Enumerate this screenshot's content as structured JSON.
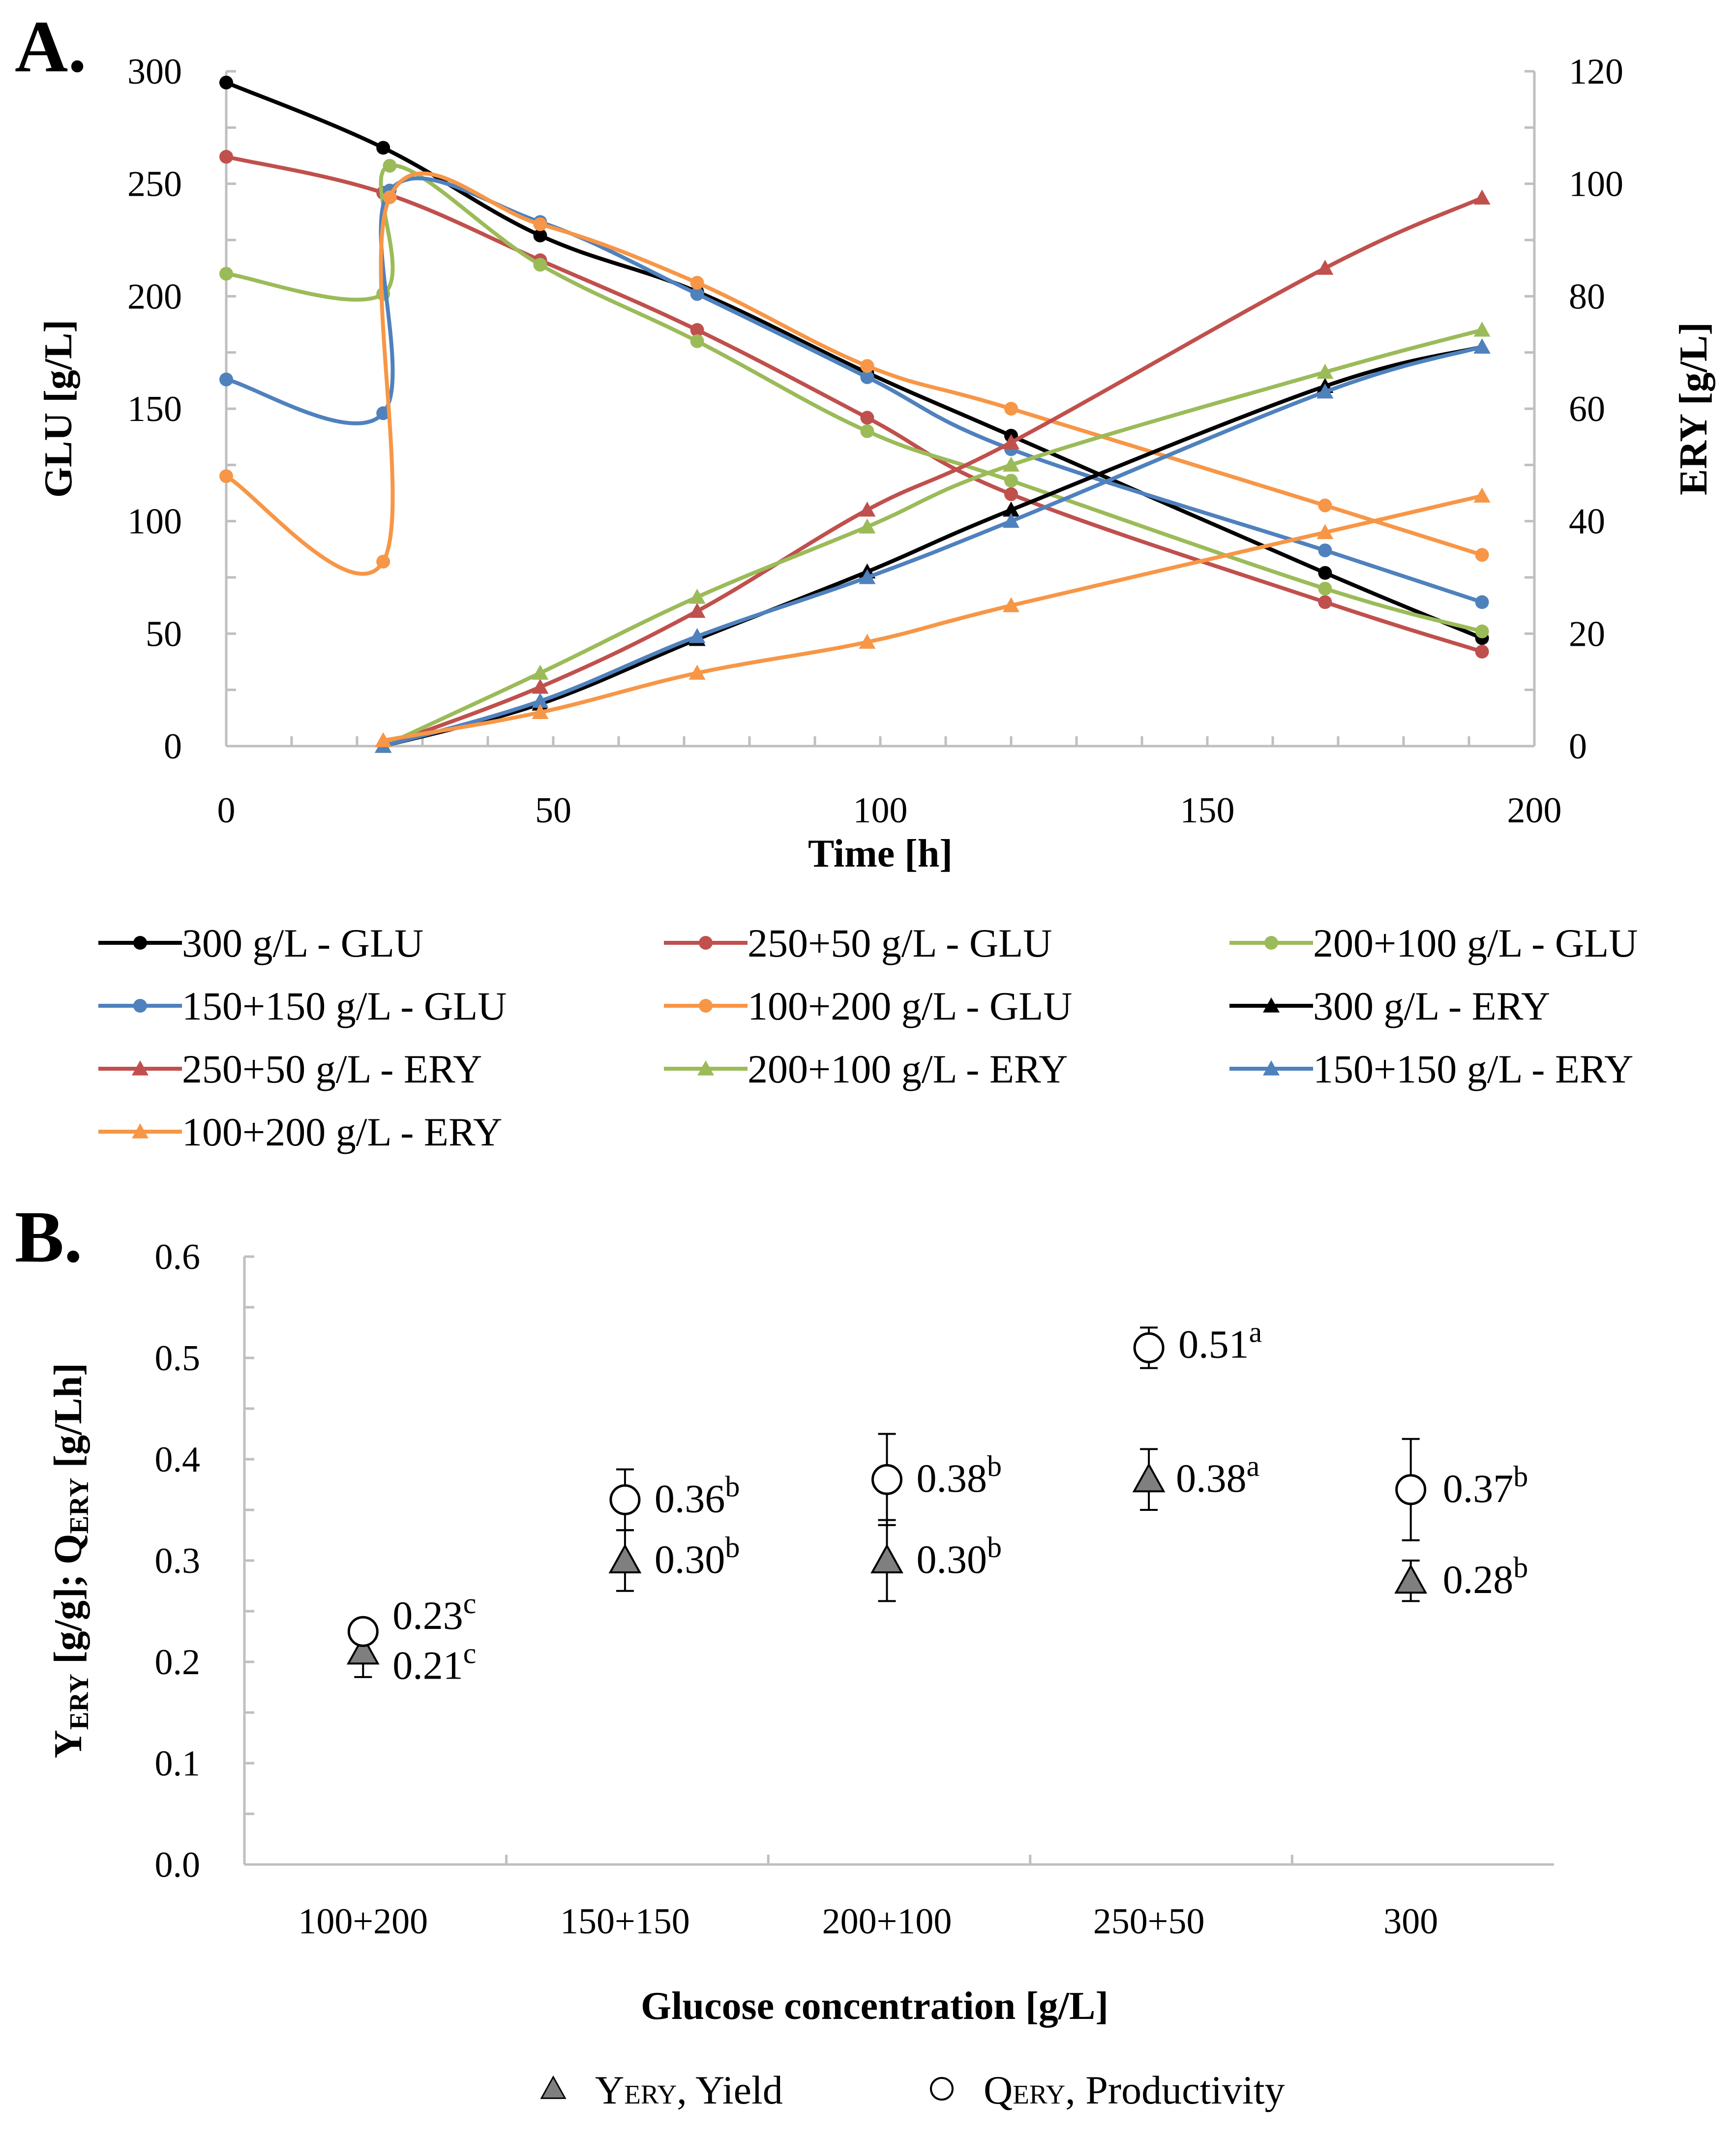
{
  "figure": {
    "panelA_label": "A.",
    "panelB_label": "B."
  },
  "chart_data": [
    {
      "type": "line",
      "title": "",
      "xlabel": "Time [h]",
      "ylabel": "GLU [g/L]",
      "y2label": "ERY [g/L]",
      "xlim": [
        0,
        200
      ],
      "ylim": [
        0,
        300
      ],
      "y2lim": [
        0,
        120
      ],
      "xticks": [
        0,
        50,
        100,
        150,
        200
      ],
      "yticks": [
        0,
        50,
        100,
        150,
        200,
        250,
        300
      ],
      "y2ticks": [
        0,
        20,
        40,
        60,
        80,
        100,
        120
      ],
      "colors": {
        "300": "#000000",
        "250+50": "#c0504d",
        "200+100": "#9bbb59",
        "150+150": "#4f81bd",
        "100+200": "#f79646"
      },
      "series": [
        {
          "name": "300 g/L - GLU",
          "axis": "left",
          "marker": "circle",
          "colorKey": "300",
          "points": [
            [
              0,
              295
            ],
            [
              24,
              266
            ],
            [
              48,
              227
            ],
            [
              72,
              202
            ],
            [
              98,
              166
            ],
            [
              120,
              138
            ],
            [
              168,
              77
            ],
            [
              192,
              48
            ]
          ]
        },
        {
          "name": "250+50 g/L - GLU",
          "axis": "left",
          "marker": "circle",
          "colorKey": "250+50",
          "points": [
            [
              0,
              262
            ],
            [
              24,
              246
            ],
            [
              48,
              216
            ],
            [
              72,
              185
            ],
            [
              98,
              146
            ],
            [
              120,
              112
            ],
            [
              168,
              64
            ],
            [
              192,
              42
            ]
          ]
        },
        {
          "name": "200+100 g/L - GLU",
          "axis": "left",
          "marker": "circle",
          "colorKey": "200+100",
          "points": [
            [
              0,
              210
            ],
            [
              24,
              201
            ],
            [
              25,
              258
            ],
            [
              48,
              214
            ],
            [
              72,
              180
            ],
            [
              98,
              140
            ],
            [
              120,
              118
            ],
            [
              168,
              70
            ],
            [
              192,
              51
            ]
          ]
        },
        {
          "name": "150+150 g/L - GLU",
          "axis": "left",
          "marker": "circle",
          "colorKey": "150+150",
          "points": [
            [
              0,
              163
            ],
            [
              24,
              148
            ],
            [
              25,
              247
            ],
            [
              48,
              233
            ],
            [
              72,
              201
            ],
            [
              98,
              164
            ],
            [
              120,
              132
            ],
            [
              168,
              87
            ],
            [
              192,
              64
            ]
          ]
        },
        {
          "name": "100+200 g/L - GLU",
          "axis": "left",
          "marker": "circle",
          "colorKey": "100+200",
          "points": [
            [
              0,
              120
            ],
            [
              24,
              82
            ],
            [
              25,
              244
            ],
            [
              48,
              232
            ],
            [
              72,
              206
            ],
            [
              98,
              169
            ],
            [
              120,
              150
            ],
            [
              168,
              107
            ],
            [
              192,
              85
            ]
          ]
        },
        {
          "name": "300 g/L - ERY",
          "axis": "right",
          "marker": "triangle",
          "colorKey": "300",
          "points": [
            [
              24,
              0
            ],
            [
              48,
              7.5
            ],
            [
              72,
              19
            ],
            [
              98,
              31
            ],
            [
              120,
              42
            ],
            [
              168,
              64
            ],
            [
              192,
              71
            ]
          ]
        },
        {
          "name": "250+50 g/L - ERY",
          "axis": "right",
          "marker": "triangle",
          "colorKey": "250+50",
          "points": [
            [
              24,
              0
            ],
            [
              48,
              10.5
            ],
            [
              72,
              24
            ],
            [
              98,
              42
            ],
            [
              120,
              54
            ],
            [
              168,
              85
            ],
            [
              192,
              97.5
            ]
          ]
        },
        {
          "name": "200+100 g/L - ERY",
          "axis": "right",
          "marker": "triangle",
          "colorKey": "200+100",
          "points": [
            [
              24,
              0
            ],
            [
              48,
              13
            ],
            [
              72,
              26.5
            ],
            [
              98,
              39
            ],
            [
              120,
              50
            ],
            [
              168,
              66.5
            ],
            [
              192,
              74
            ]
          ]
        },
        {
          "name": "150+150 g/L - ERY",
          "axis": "right",
          "marker": "triangle",
          "colorKey": "150+150",
          "points": [
            [
              24,
              0
            ],
            [
              48,
              8
            ],
            [
              72,
              19.5
            ],
            [
              98,
              30
            ],
            [
              120,
              40
            ],
            [
              168,
              63
            ],
            [
              192,
              71
            ]
          ]
        },
        {
          "name": "100+200 g/L - ERY",
          "axis": "right",
          "marker": "triangle",
          "colorKey": "100+200",
          "points": [
            [
              24,
              1
            ],
            [
              48,
              6
            ],
            [
              72,
              13
            ],
            [
              98,
              18.5
            ],
            [
              120,
              25
            ],
            [
              168,
              38
            ],
            [
              192,
              44.5
            ]
          ]
        }
      ]
    },
    {
      "type": "scatter",
      "title": "",
      "xlabel": "Glucose concentration [g/L]",
      "ylabel": "Y_ERY [g/g]; Q_ERY [g/Lh]",
      "ylabel_parts": [
        "Y",
        "ERY",
        " [g/g]; Q",
        "ERY",
        " [g/Lh]"
      ],
      "ylim": [
        0,
        0.6
      ],
      "yticks": [
        "0.0",
        "0.1",
        "0.2",
        "0.3",
        "0.4",
        "0.5",
        "0.6"
      ],
      "categories": [
        "100+200",
        "150+150",
        "200+100",
        "250+50",
        "300"
      ],
      "series": [
        {
          "name": "Productivity",
          "legend_main": "Q",
          "legend_sub": "ERY",
          "legend_rest": ", Productivity",
          "marker": "open-circle",
          "values": [
            0.23,
            0.36,
            0.38,
            0.51,
            0.37
          ],
          "errors": [
            0.01,
            0.03,
            0.045,
            0.02,
            0.05
          ],
          "labels": [
            "0.23",
            "0.36",
            "0.38",
            "0.51",
            "0.37"
          ],
          "letters": [
            "c",
            "b",
            "b",
            "a",
            "b"
          ]
        },
        {
          "name": "Yield",
          "legend_main": "Y",
          "legend_sub": "ERY",
          "legend_rest": ", Yield",
          "marker": "gray-triangle",
          "values": [
            0.21,
            0.3,
            0.3,
            0.38,
            0.28
          ],
          "errors": [
            0.025,
            0.03,
            0.04,
            0.03,
            0.02
          ],
          "labels": [
            "0.21",
            "0.30",
            "0.30",
            "0.38",
            "0.28"
          ],
          "letters": [
            "c",
            "b",
            "b",
            "a",
            "b"
          ]
        }
      ]
    }
  ]
}
